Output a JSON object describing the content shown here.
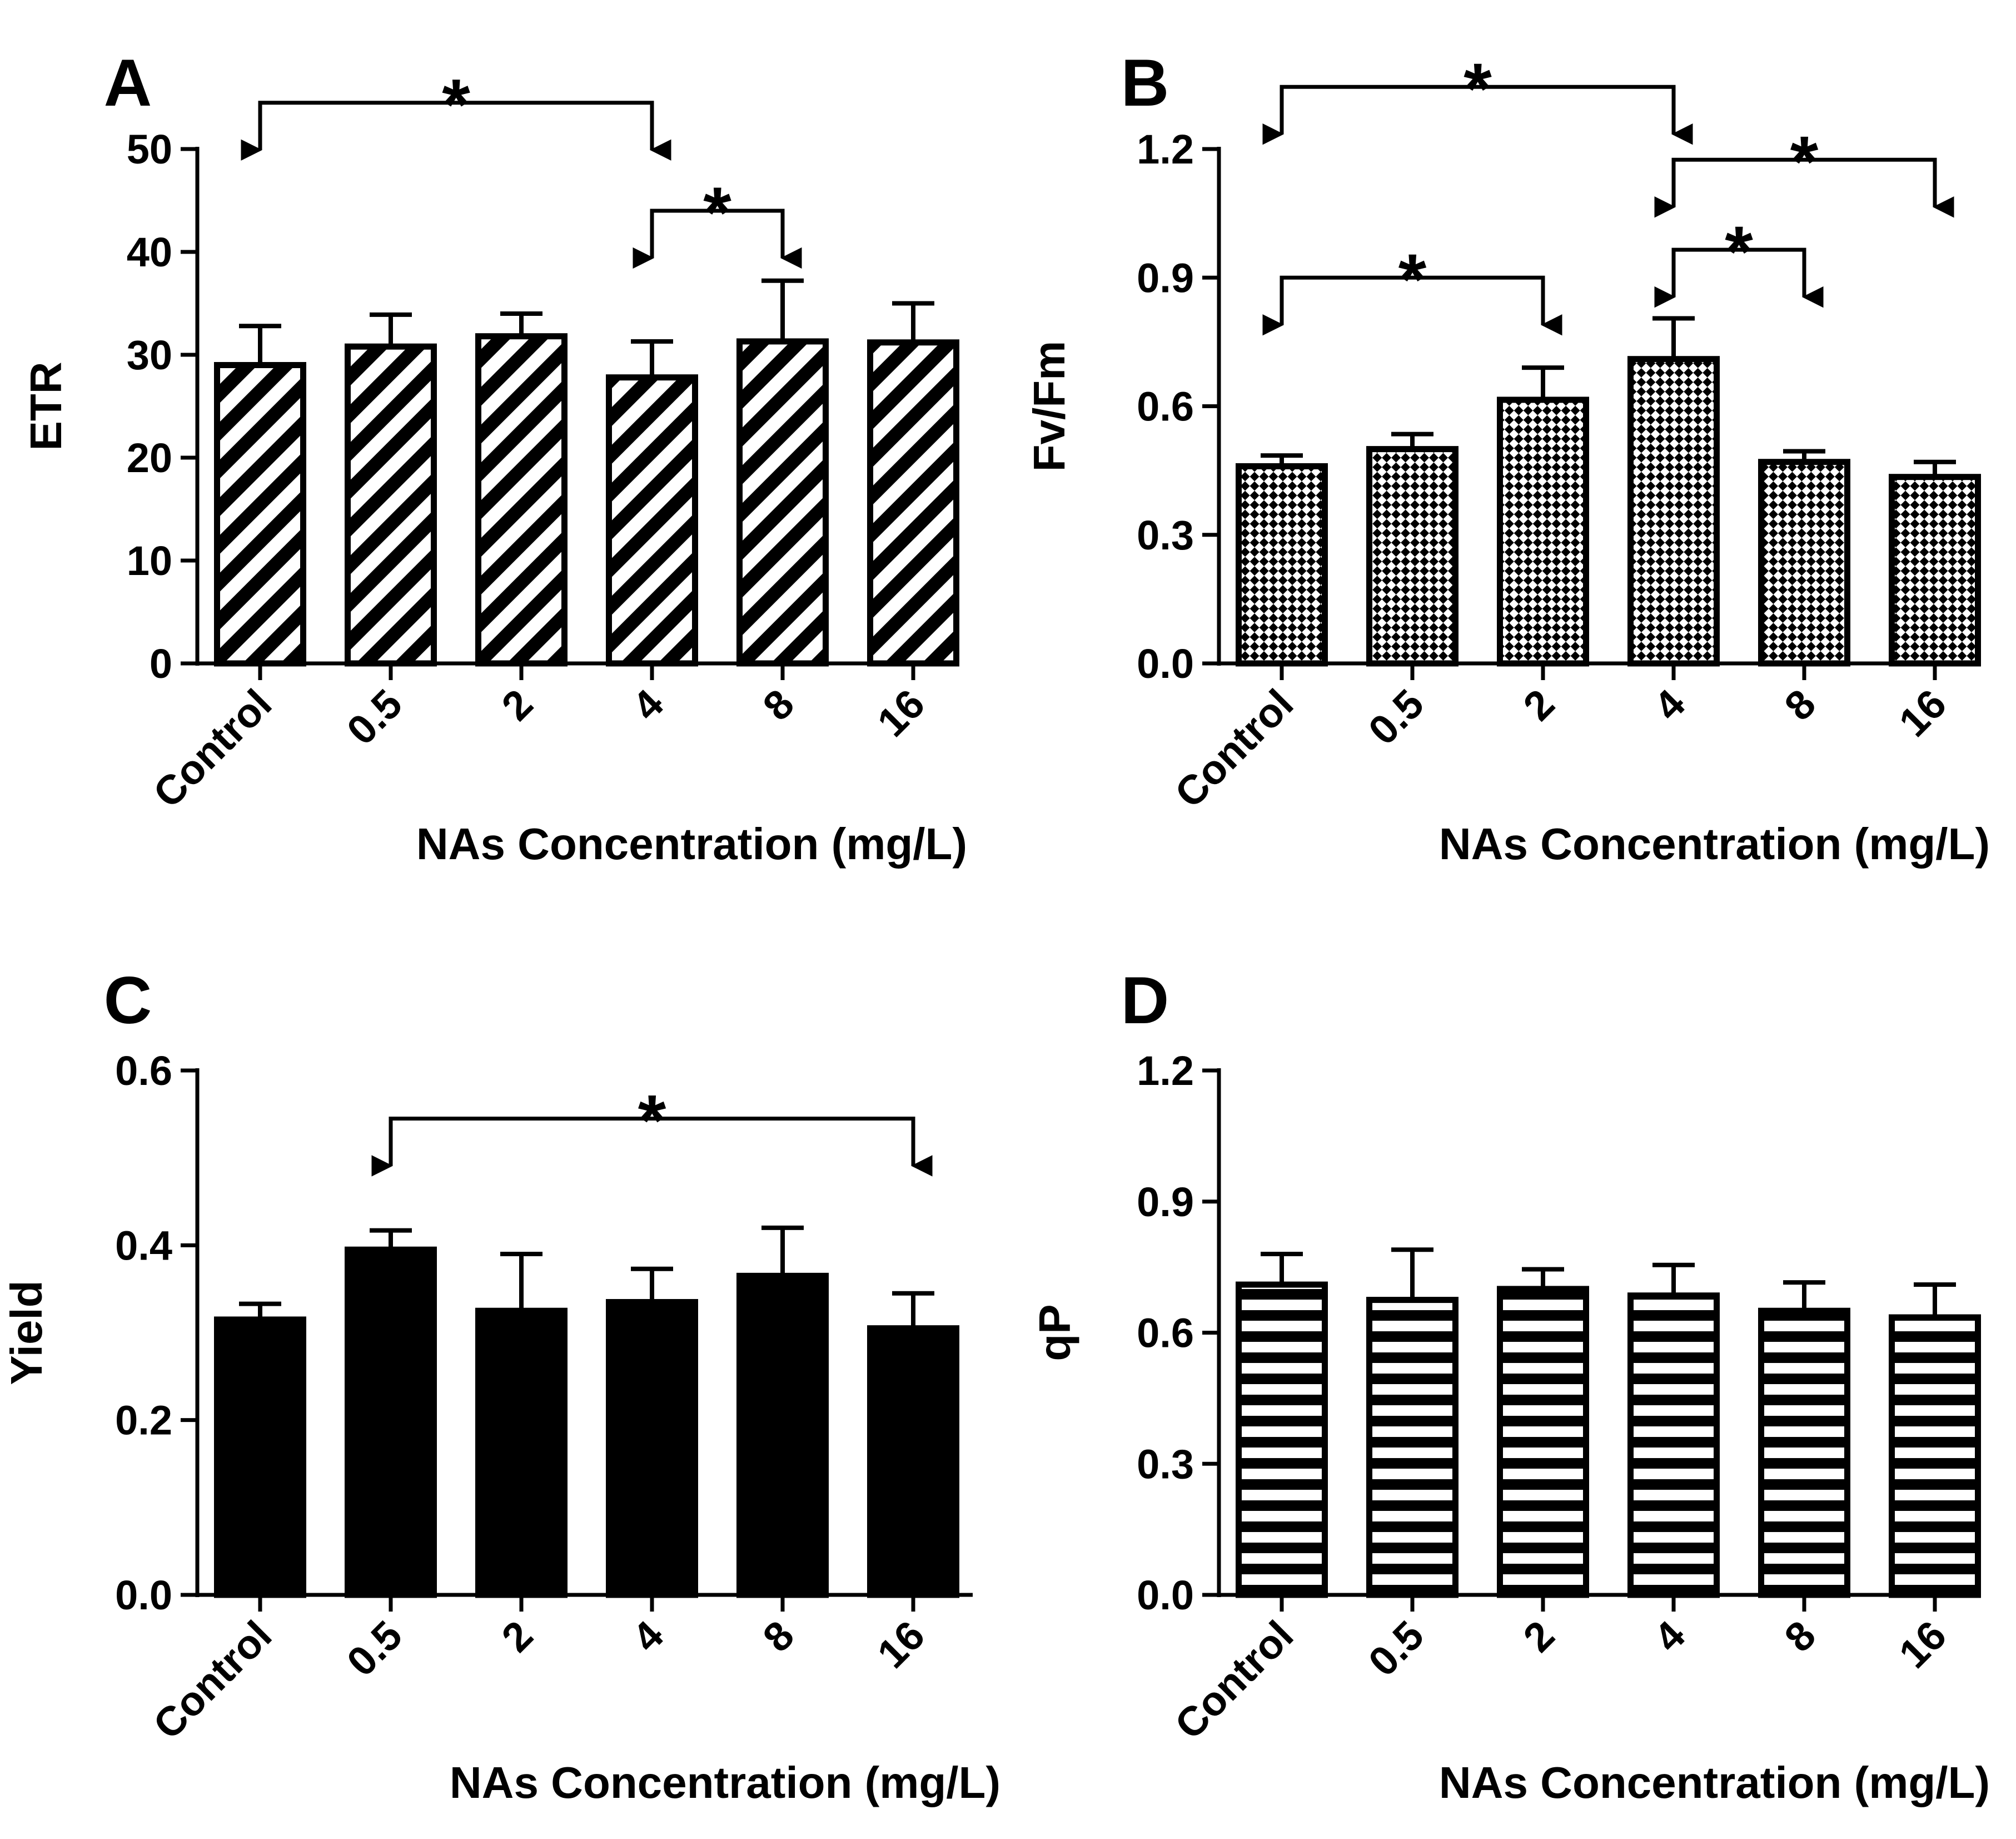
{
  "figure": {
    "colors": {
      "ink": "#000000",
      "background": "#ffffff"
    },
    "panels": [
      {
        "letter": "A"
      },
      {
        "letter": "B"
      },
      {
        "letter": "C"
      },
      {
        "letter": "D"
      }
    ]
  },
  "chart_data": [
    {
      "type": "bar",
      "panel": "A",
      "title": "",
      "categories": [
        "Control",
        "0.5",
        "2",
        "4",
        "8",
        "16"
      ],
      "values": [
        29,
        30.8,
        31.8,
        27.8,
        31.3,
        31.2
      ],
      "errors": [
        3.8,
        3.1,
        2.2,
        3.5,
        5.9,
        3.8
      ],
      "xlabel": "NAs Concentration (mg/L)",
      "ylabel": "ETR",
      "ylim": [
        0,
        50
      ],
      "yticks": [
        "0",
        "10",
        "20",
        "30",
        "40",
        "50"
      ],
      "fill_pattern": "diagonal-stripes",
      "grid": false,
      "legend": "none",
      "significance": [
        {
          "from": "Control",
          "to": "4",
          "label": "*",
          "level": 54.5
        },
        {
          "from": "4",
          "to": "8",
          "label": "*",
          "level": 44
        }
      ]
    },
    {
      "type": "bar",
      "panel": "B",
      "title": "",
      "categories": [
        "Control",
        "0.5",
        "2",
        "4",
        "8",
        "16"
      ],
      "values": [
        0.46,
        0.5,
        0.615,
        0.71,
        0.47,
        0.435
      ],
      "errors": [
        0.025,
        0.035,
        0.075,
        0.095,
        0.025,
        0.035
      ],
      "xlabel": "NAs Concentration (mg/L)",
      "ylabel": "Fv/Fm",
      "ylim": [
        0,
        1.2
      ],
      "yticks": [
        "0.0",
        "0.3",
        "0.6",
        "0.9",
        "1.2"
      ],
      "fill_pattern": "checker",
      "grid": false,
      "legend": "none",
      "significance": [
        {
          "from": "Control",
          "to": "4",
          "label": "*",
          "level": 1.345
        },
        {
          "from": "4",
          "to": "16",
          "label": "*",
          "level": 1.175
        },
        {
          "from": "Control",
          "to": "2",
          "label": "*",
          "level": 0.9
        },
        {
          "from": "4",
          "to": "8",
          "label": "*",
          "level": 0.965
        }
      ]
    },
    {
      "type": "bar",
      "panel": "C",
      "title": "",
      "categories": [
        "Control",
        "0.5",
        "2",
        "4",
        "8",
        "16"
      ],
      "values": [
        0.315,
        0.395,
        0.325,
        0.335,
        0.365,
        0.305
      ],
      "errors": [
        0.018,
        0.022,
        0.065,
        0.038,
        0.055,
        0.04
      ],
      "xlabel": "NAs Concentration (mg/L)",
      "ylabel": "Yield",
      "ylim": [
        0,
        0.6
      ],
      "yticks": [
        "0.0",
        "0.2",
        "0.4",
        "0.6"
      ],
      "fill_pattern": "solid",
      "grid": false,
      "legend": "none",
      "significance": [
        {
          "from": "0.5",
          "to": "16",
          "label": "*",
          "level": 0.545
        }
      ]
    },
    {
      "type": "bar",
      "panel": "D",
      "title": "",
      "categories": [
        "Control",
        "0.5",
        "2",
        "4",
        "8",
        "16"
      ],
      "values": [
        0.71,
        0.675,
        0.7,
        0.685,
        0.65,
        0.635
      ],
      "errors": [
        0.07,
        0.115,
        0.045,
        0.07,
        0.065,
        0.075
      ],
      "xlabel": "NAs Concentration (mg/L)",
      "ylabel": "qP",
      "ylim": [
        0,
        1.2
      ],
      "yticks": [
        "0.0",
        "0.3",
        "0.6",
        "0.9",
        "1.2"
      ],
      "fill_pattern": "horizontal-stripes",
      "grid": false,
      "legend": "none",
      "significance": []
    }
  ]
}
